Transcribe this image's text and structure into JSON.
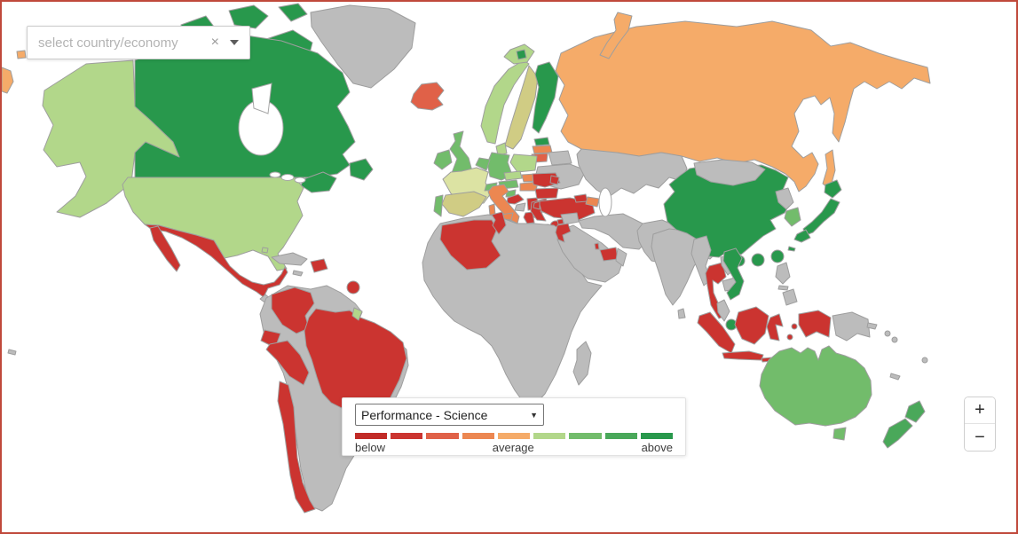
{
  "window": {
    "frame_color": "#c0493b"
  },
  "search_box": {
    "placeholder": "select country/economy",
    "clear_icon": "×"
  },
  "legend": {
    "metric_dropdown": {
      "value": "Performance - Science",
      "caret": "▼"
    },
    "labels": {
      "left": "below",
      "center": "average",
      "right": "above"
    }
  },
  "zoom_controls": {
    "zoom_in": "+",
    "zoom_out": "−"
  },
  "map": {
    "ocean": "#ffffff",
    "stroke": "#9e9e9e",
    "palette": {
      "na": "#bcbcbc",
      "c1": "#c12b27",
      "c2": "#cb3430",
      "c3": "#e06148",
      "c4": "#ec8751",
      "c5": "#f5ab69",
      "c6": "#b2d78a",
      "c7": "#72bc6b",
      "c8": "#4aa85a",
      "c9": "#28984c",
      "tan": "#d0cc84",
      "pale": "#dce3a3"
    },
    "legend_levels": [
      "c1",
      "c2",
      "c3",
      "c4",
      "c5",
      "c6",
      "c7",
      "c8",
      "c9"
    ],
    "regions": [
      {
        "id": "greenland",
        "name": "Greenland",
        "level": "na"
      },
      {
        "id": "can-arctic-1",
        "name": "Canada (Arctic Islands)",
        "level": "c9"
      },
      {
        "id": "can-arctic-2",
        "name": "Canada (Arctic Islands)",
        "level": "c9"
      },
      {
        "id": "can-arctic-3",
        "name": "Canada (Baffin Island)",
        "level": "c9"
      },
      {
        "id": "can-arctic-4",
        "name": "Canada (Victoria Island)",
        "level": "c9"
      },
      {
        "id": "can-arctic-5",
        "name": "Canada (Arctic Islands)",
        "level": "c9"
      },
      {
        "id": "canada",
        "name": "Canada",
        "level": "c9"
      },
      {
        "id": "maritimes",
        "name": "Canada (Maritimes)",
        "level": "c9"
      },
      {
        "id": "newfoundland",
        "name": "Canada (Newfoundland)",
        "level": "c9"
      },
      {
        "id": "alaska",
        "name": "United States (Alaska)",
        "level": "c6"
      },
      {
        "id": "usa",
        "name": "United States",
        "level": "c6"
      },
      {
        "id": "mexico",
        "name": "Mexico",
        "level": "c2"
      },
      {
        "id": "baja",
        "name": "Mexico (Baja California)",
        "level": "c2"
      },
      {
        "id": "central-america",
        "name": "Central America",
        "level": "na"
      },
      {
        "id": "costa-rica",
        "name": "Costa Rica",
        "level": "c2"
      },
      {
        "id": "cuba",
        "name": "Cuba",
        "level": "na"
      },
      {
        "id": "jamaica",
        "name": "Jamaica",
        "level": "na"
      },
      {
        "id": "dominican",
        "name": "Dominican Republic",
        "level": "c2"
      },
      {
        "id": "bahamas",
        "name": "Bahamas",
        "level": "c6"
      },
      {
        "id": "trinidad",
        "name": "Trinidad and Tobago",
        "level": "c2"
      },
      {
        "id": "guadeloupe",
        "name": "Guadeloupe",
        "level": "c6"
      },
      {
        "id": "sa-base",
        "name": "South America (other)",
        "level": "na"
      },
      {
        "id": "colombia",
        "name": "Colombia",
        "level": "c2"
      },
      {
        "id": "ecuador",
        "name": "Ecuador",
        "level": "c2"
      },
      {
        "id": "peru",
        "name": "Peru",
        "level": "c2"
      },
      {
        "id": "brazil",
        "name": "Brazil",
        "level": "c2"
      },
      {
        "id": "chile",
        "name": "Chile",
        "level": "c2"
      },
      {
        "id": "uruguay",
        "name": "Uruguay",
        "level": "c2"
      },
      {
        "id": "french-guiana",
        "name": "French Guiana",
        "level": "c6"
      },
      {
        "id": "iceland",
        "name": "Iceland",
        "level": "c3"
      },
      {
        "id": "ireland",
        "name": "Ireland",
        "level": "c7"
      },
      {
        "id": "uk",
        "name": "United Kingdom",
        "level": "c7"
      },
      {
        "id": "norway",
        "name": "Norway",
        "level": "c6"
      },
      {
        "id": "sweden",
        "name": "Sweden",
        "level": "tan"
      },
      {
        "id": "denmark",
        "name": "Denmark",
        "level": "c6"
      },
      {
        "id": "finland",
        "name": "Finland",
        "level": "c9"
      },
      {
        "id": "svalbard-outer",
        "name": "Svalbard",
        "level": "c6"
      },
      {
        "id": "svalbard-inner",
        "name": "Svalbard",
        "level": "c9"
      },
      {
        "id": "estonia",
        "name": "Estonia",
        "level": "c9"
      },
      {
        "id": "latvia",
        "name": "Latvia",
        "level": "c4"
      },
      {
        "id": "lithuania",
        "name": "Lithuania",
        "level": "c3"
      },
      {
        "id": "kaliningrad",
        "name": "Russia (Kaliningrad)",
        "level": "c5"
      },
      {
        "id": "belarus",
        "name": "Belarus",
        "level": "na"
      },
      {
        "id": "ukraine",
        "name": "Ukraine",
        "level": "na"
      },
      {
        "id": "russia",
        "name": "Russia",
        "level": "c5"
      },
      {
        "id": "novaya",
        "name": "Russia (Novaya Zemlya)",
        "level": "c5"
      },
      {
        "id": "sakhalin",
        "name": "Russia (Sakhalin)",
        "level": "c5"
      },
      {
        "id": "chuk1",
        "name": "Russia (Chukotka)",
        "level": "c5"
      },
      {
        "id": "chuk2",
        "name": "Russia (Chukotka)",
        "level": "c5"
      },
      {
        "id": "poland",
        "name": "Poland",
        "level": "c6"
      },
      {
        "id": "germany",
        "name": "Germany",
        "level": "c7"
      },
      {
        "id": "nl-be",
        "name": "Netherlands / Belgium",
        "level": "c7"
      },
      {
        "id": "france",
        "name": "France",
        "level": "pale"
      },
      {
        "id": "switzerland",
        "name": "Switzerland",
        "level": "c7"
      },
      {
        "id": "austria",
        "name": "Austria",
        "level": "c7"
      },
      {
        "id": "czech",
        "name": "Czech Republic",
        "level": "c6"
      },
      {
        "id": "slovakia",
        "name": "Slovakia",
        "level": "c4"
      },
      {
        "id": "hungary",
        "name": "Hungary",
        "level": "c4"
      },
      {
        "id": "slovenia",
        "name": "Slovenia",
        "level": "c7"
      },
      {
        "id": "croatia",
        "name": "Croatia",
        "level": "c2"
      },
      {
        "id": "bosnia",
        "name": "Bosnia and Herzegovina",
        "level": "na"
      },
      {
        "id": "serbia",
        "name": "Serbia",
        "level": "c2"
      },
      {
        "id": "albania",
        "name": "Albania / Montenegro",
        "level": "c2"
      },
      {
        "id": "macedonia",
        "name": "North Macedonia",
        "level": "c2"
      },
      {
        "id": "romania",
        "name": "Romania",
        "level": "c2"
      },
      {
        "id": "bulgaria",
        "name": "Bulgaria",
        "level": "c2"
      },
      {
        "id": "greece",
        "name": "Greece",
        "level": "c2"
      },
      {
        "id": "crete",
        "name": "Greece (Crete)",
        "level": "c2"
      },
      {
        "id": "moldova",
        "name": "Moldova",
        "level": "c2"
      },
      {
        "id": "spain",
        "name": "Spain",
        "level": "tan"
      },
      {
        "id": "portugal",
        "name": "Portugal",
        "level": "c7"
      },
      {
        "id": "italy",
        "name": "Italy",
        "level": "c4"
      },
      {
        "id": "sicily",
        "name": "Italy (Sicily)",
        "level": "c4"
      },
      {
        "id": "sardinia",
        "name": "Italy (Sardinia)",
        "level": "c4"
      },
      {
        "id": "malta",
        "name": "Malta",
        "level": "c2"
      },
      {
        "id": "turkey",
        "name": "Turkey",
        "level": "c2"
      },
      {
        "id": "istanbul",
        "name": "Turkey (Thrace)",
        "level": "c2"
      },
      {
        "id": "cyprus",
        "name": "Cyprus",
        "level": "c2"
      },
      {
        "id": "georgia",
        "name": "Georgia",
        "level": "c2"
      },
      {
        "id": "azerbaijan",
        "name": "Azerbaijan",
        "level": "c4"
      },
      {
        "id": "africa",
        "name": "Africa (no data)",
        "level": "na"
      },
      {
        "id": "algeria",
        "name": "Algeria",
        "level": "c2"
      },
      {
        "id": "tunisia",
        "name": "Tunisia",
        "level": "c2"
      },
      {
        "id": "madagascar",
        "name": "Madagascar",
        "level": "na"
      },
      {
        "id": "saudi",
        "name": "Arabian Peninsula",
        "level": "na"
      },
      {
        "id": "syria",
        "name": "Syria",
        "level": "na"
      },
      {
        "id": "iran-blob",
        "name": "Iran / Iraq",
        "level": "na"
      },
      {
        "id": "afpak",
        "name": "Afghanistan / Pakistan",
        "level": "na"
      },
      {
        "id": "israel-jordan",
        "name": "Israel / Jordan",
        "level": "c2"
      },
      {
        "id": "lebanon",
        "name": "Lebanon",
        "level": "c2"
      },
      {
        "id": "uae",
        "name": "United Arab Emirates",
        "level": "c2"
      },
      {
        "id": "qatar",
        "name": "Qatar",
        "level": "c2"
      },
      {
        "id": "oman",
        "name": "Oman",
        "level": "na"
      },
      {
        "id": "kazakh",
        "name": "Kazakhstan / Central Asia",
        "level": "na"
      },
      {
        "id": "india",
        "name": "India",
        "level": "na"
      },
      {
        "id": "sri-lanka",
        "name": "Sri Lanka",
        "level": "na"
      },
      {
        "id": "china",
        "name": "China",
        "level": "c9"
      },
      {
        "id": "hainan",
        "name": "China (Hainan)",
        "level": "c9"
      },
      {
        "id": "mongolia",
        "name": "Mongolia",
        "level": "na"
      },
      {
        "id": "nk",
        "name": "North Korea",
        "level": "na"
      },
      {
        "id": "sk",
        "name": "South Korea",
        "level": "c7"
      },
      {
        "id": "japan-hokkaido",
        "name": "Japan (Hokkaido)",
        "level": "c9"
      },
      {
        "id": "japan-honshu",
        "name": "Japan (Honshu)",
        "level": "c9"
      },
      {
        "id": "japan-kyushu",
        "name": "Japan (Kyushu)",
        "level": "c9"
      },
      {
        "id": "okinawa",
        "name": "Japan (Okinawa)",
        "level": "c9"
      },
      {
        "id": "taiwan",
        "name": "Chinese Taipei",
        "level": "c9"
      },
      {
        "id": "hongkong",
        "name": "Hong Kong (China)",
        "level": "c9"
      },
      {
        "id": "macau",
        "name": "Macao (China)",
        "level": "c9"
      },
      {
        "id": "myanmar",
        "name": "Myanmar",
        "level": "na"
      },
      {
        "id": "thailand",
        "name": "Thailand",
        "level": "c2"
      },
      {
        "id": "laos",
        "name": "Laos",
        "level": "na"
      },
      {
        "id": "cambodia",
        "name": "Cambodia",
        "level": "na"
      },
      {
        "id": "vietnam",
        "name": "Viet Nam",
        "level": "c9"
      },
      {
        "id": "malaysia-pen",
        "name": "Malaysia (Peninsular)",
        "level": "na"
      },
      {
        "id": "singapore",
        "name": "Singapore",
        "level": "c9"
      },
      {
        "id": "sumatra",
        "name": "Indonesia (Sumatra)",
        "level": "c2"
      },
      {
        "id": "java",
        "name": "Indonesia (Java)",
        "level": "c2"
      },
      {
        "id": "borneo",
        "name": "Borneo (Malaysia / Indonesia)",
        "level": "c2"
      },
      {
        "id": "sulawesi",
        "name": "Indonesia (Sulawesi)",
        "level": "c2"
      },
      {
        "id": "sunda1",
        "name": "Indonesia (Lesser Sunda)",
        "level": "c2"
      },
      {
        "id": "sunda2",
        "name": "Indonesia (Lesser Sunda)",
        "level": "c2"
      },
      {
        "id": "sunda3",
        "name": "Indonesia (Lesser Sunda)",
        "level": "c2"
      },
      {
        "id": "maluku1",
        "name": "Indonesia (Maluku)",
        "level": "c2"
      },
      {
        "id": "maluku2",
        "name": "Indonesia (Maluku)",
        "level": "c2"
      },
      {
        "id": "west-papua",
        "name": "Indonesia (West Papua)",
        "level": "c2"
      },
      {
        "id": "png",
        "name": "Papua New Guinea",
        "level": "na"
      },
      {
        "id": "png-islands",
        "name": "Papua New Guinea (Islands)",
        "level": "na"
      },
      {
        "id": "solomon1",
        "name": "Solomon Islands",
        "level": "na"
      },
      {
        "id": "solomon2",
        "name": "Solomon Islands",
        "level": "na"
      },
      {
        "id": "luzon",
        "name": "Philippines (Luzon)",
        "level": "na"
      },
      {
        "id": "visayas",
        "name": "Philippines (Visayas)",
        "level": "na"
      },
      {
        "id": "mindanao",
        "name": "Philippines (Mindanao)",
        "level": "na"
      },
      {
        "id": "australia",
        "name": "Australia",
        "level": "c7"
      },
      {
        "id": "tasmania",
        "name": "Australia (Tasmania)",
        "level": "c7"
      },
      {
        "id": "nz-north",
        "name": "New Zealand (North Island)",
        "level": "c8"
      },
      {
        "id": "nz-south",
        "name": "New Zealand (South Island)",
        "level": "c8"
      },
      {
        "id": "new-caledonia",
        "name": "New Caledonia",
        "level": "na"
      },
      {
        "id": "fiji",
        "name": "Fiji",
        "level": "na"
      },
      {
        "id": "hawaii",
        "name": "United States (Hawaii)",
        "level": "na"
      }
    ]
  }
}
